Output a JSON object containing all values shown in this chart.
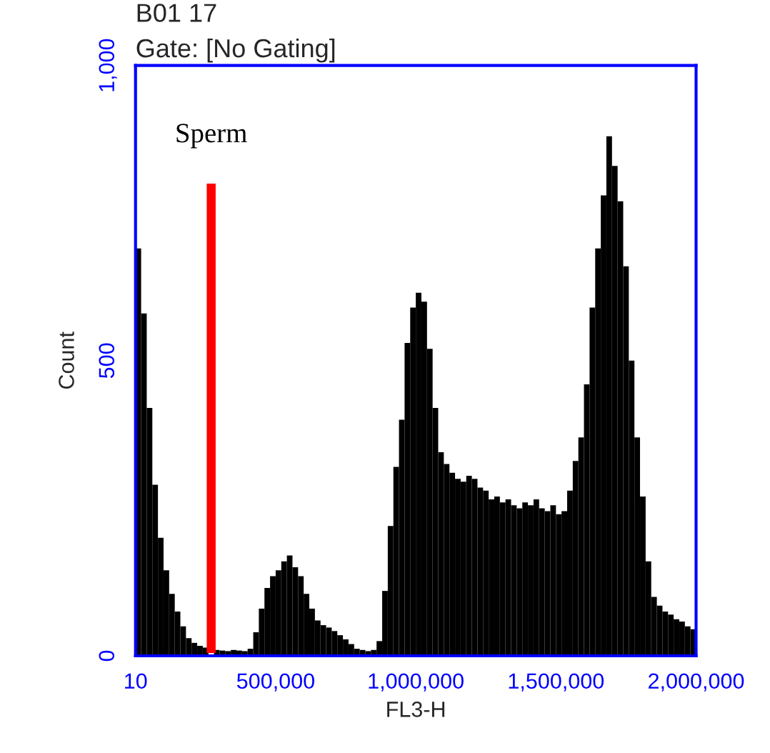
{
  "chart_data": {
    "type": "histogram",
    "title": "B01 17",
    "subtitle": "Gate: [No Gating]",
    "xlabel": "FL3-H",
    "ylabel": "Count",
    "color": "#000000",
    "bins": [
      0,
      20000,
      40000,
      60000,
      80000,
      100000,
      120000,
      140000,
      160000,
      180000,
      200000,
      220000,
      240000,
      260000,
      280000,
      300000,
      320000,
      340000,
      360000,
      380000,
      400000,
      420000,
      440000,
      460000,
      480000,
      500000,
      520000,
      540000,
      560000,
      580000,
      600000,
      620000,
      640000,
      660000,
      680000,
      700000,
      720000,
      740000,
      760000,
      780000,
      800000,
      820000,
      840000,
      860000,
      880000,
      900000,
      920000,
      940000,
      960000,
      980000,
      1000000,
      1020000,
      1040000,
      1060000,
      1080000,
      1100000,
      1120000,
      1140000,
      1160000,
      1180000,
      1200000,
      1220000,
      1240000,
      1260000,
      1280000,
      1300000,
      1320000,
      1340000,
      1360000,
      1380000,
      1400000,
      1420000,
      1440000,
      1460000,
      1480000,
      1500000,
      1520000,
      1540000,
      1560000,
      1580000,
      1600000,
      1620000,
      1640000,
      1660000,
      1680000,
      1700000,
      1720000,
      1740000,
      1760000,
      1780000,
      1800000,
      1820000,
      1840000,
      1860000,
      1880000,
      1900000,
      1920000,
      1940000,
      1960000,
      1980000,
      2000000
    ],
    "values": [
      690,
      580,
      420,
      290,
      200,
      145,
      105,
      75,
      50,
      30,
      22,
      17,
      14,
      null,
      10,
      9,
      8,
      10,
      9,
      8,
      12,
      40,
      80,
      115,
      135,
      145,
      160,
      170,
      150,
      135,
      105,
      80,
      60,
      52,
      48,
      42,
      35,
      28,
      20,
      12,
      10,
      8,
      10,
      25,
      110,
      220,
      320,
      400,
      530,
      590,
      615,
      600,
      520,
      420,
      345,
      325,
      310,
      300,
      295,
      305,
      300,
      285,
      280,
      265,
      270,
      260,
      265,
      255,
      250,
      260,
      255,
      265,
      250,
      245,
      255,
      240,
      245,
      280,
      330,
      370,
      460,
      590,
      690,
      780,
      880,
      830,
      770,
      660,
      500,
      370,
      270,
      160,
      100,
      85,
      75,
      70,
      62,
      58,
      50,
      45
    ],
    "xlim": [
      0,
      2000000
    ],
    "xticks": [
      10,
      {
        "value": 500000,
        "label": "500,000"
      },
      {
        "value": 1000000,
        "label": "1,000,000"
      },
      {
        "value": 1500000,
        "label": "1,500,000"
      },
      {
        "value": 2000000,
        "label": "2,000,000"
      }
    ],
    "ylim": [
      0,
      1000
    ],
    "yticks": [
      0,
      500,
      {
        "value": 1000,
        "label": "1,000"
      }
    ],
    "ref_lines": [
      {
        "axis": "x",
        "value": 270000,
        "label": "Sperm",
        "color": "#ff0000"
      }
    ],
    "grid": false,
    "legend": false
  }
}
